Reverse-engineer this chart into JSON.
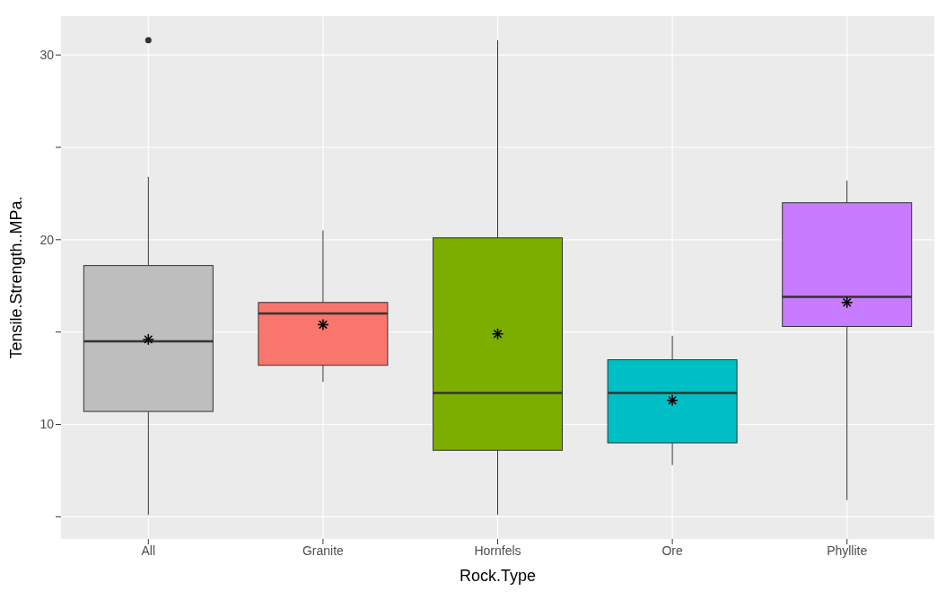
{
  "chart_data": {
    "type": "box",
    "xlabel": "Rock.Type",
    "ylabel": "Tensile.Strength..MPa.",
    "categories": [
      "All",
      "Granite",
      "Hornfels",
      "Ore",
      "Phyllite"
    ],
    "colors": [
      "#bebebe",
      "#f8766d",
      "#7cae00",
      "#00bfc4",
      "#c77cff"
    ],
    "boxes": [
      {
        "low": 5.1,
        "q1": 10.7,
        "median": 14.5,
        "q3": 18.6,
        "high": 23.4,
        "mean": 14.6,
        "outliers": [
          30.8
        ]
      },
      {
        "low": 12.3,
        "q1": 13.2,
        "median": 16.0,
        "q3": 16.6,
        "high": 20.5,
        "mean": 15.4
      },
      {
        "low": 5.1,
        "q1": 8.6,
        "median": 11.7,
        "q3": 20.1,
        "high": 30.8,
        "mean": 14.9
      },
      {
        "low": 7.8,
        "q1": 9.0,
        "median": 11.7,
        "q3": 13.5,
        "high": 14.8,
        "mean": 11.3
      },
      {
        "low": 5.9,
        "q1": 15.3,
        "median": 16.9,
        "q3": 22.0,
        "high": 23.2,
        "mean": 16.6
      }
    ],
    "ylim": [
      3.8,
      32.1
    ],
    "yticks": [
      {
        "value": 5,
        "label": null
      },
      10,
      {
        "value": 15,
        "label": null
      },
      20,
      {
        "value": 25,
        "label": null
      },
      30
    ],
    "grid": true
  }
}
